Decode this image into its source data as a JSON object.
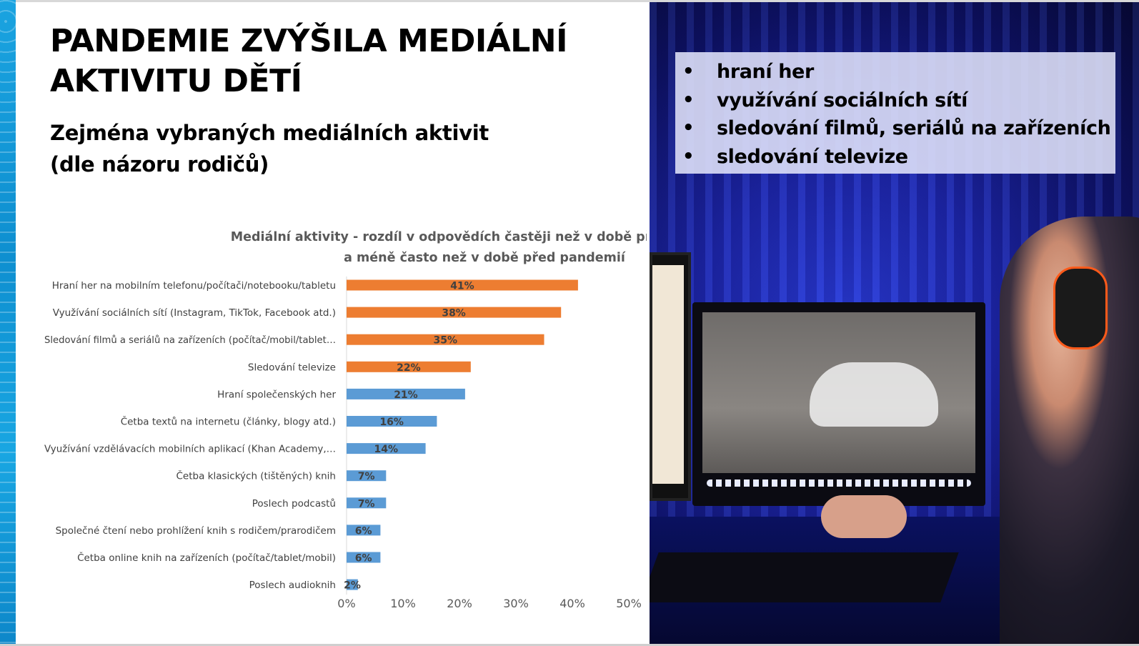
{
  "slide": {
    "title_line1": "PANDEMIE ZVÝŠILA MEDIÁLNÍ",
    "title_line2": "AKTIVITU DĚTÍ",
    "subtitle_line1": "Zejména vybraných mediálních aktivit",
    "subtitle_line2": "(dle názoru rodičů)"
  },
  "bullets": [
    "hraní her",
    "využívání sociálních sítí",
    "sledování filmů, seriálů na zařízeních",
    "sledování televize"
  ],
  "chart_data": {
    "type": "bar",
    "orientation": "horizontal",
    "title": "Mediální aktivity - rozdíl v odpovědích častěji než v době před pandemií",
    "title_line2": "a méně často než v době před pandemií",
    "categories": [
      "Hraní her na mobilním telefonu/počítači/notebooku/tabletu",
      "Využívání sociálních sítí (Instagram, TikTok, Facebook atd.)",
      "Sledování filmů a seriálů na zařízeních (počítač/mobil/tablet…",
      "Sledování televize",
      "Hraní společenských her",
      "Četba textů na internetu (články, blogy atd.)",
      "Využívání vzdělávacích mobilních aplikací (Khan Academy,…",
      "Četba klasických (tištěných) knih",
      "Poslech podcastů",
      "Společné čtení nebo prohlížení knih s rodičem/prarodičem",
      "Četba online knih na zařízeních (počítač/tablet/mobil)",
      "Poslech audioknih"
    ],
    "values": [
      41,
      38,
      35,
      22,
      21,
      16,
      14,
      7,
      7,
      6,
      6,
      2
    ],
    "value_labels": [
      "41%",
      "38%",
      "35%",
      "22%",
      "21%",
      "16%",
      "14%",
      "7%",
      "7%",
      "6%",
      "6%",
      "2%"
    ],
    "highlighted_count": 4,
    "xlim": [
      0,
      50
    ],
    "xticks": [
      "0%",
      "10%",
      "20%",
      "30%",
      "40%",
      "50%"
    ],
    "colors": {
      "highlight": "#ED7D31",
      "normal": "#5B9BD5",
      "label": "#404040"
    },
    "grid": false,
    "legend": "none"
  }
}
